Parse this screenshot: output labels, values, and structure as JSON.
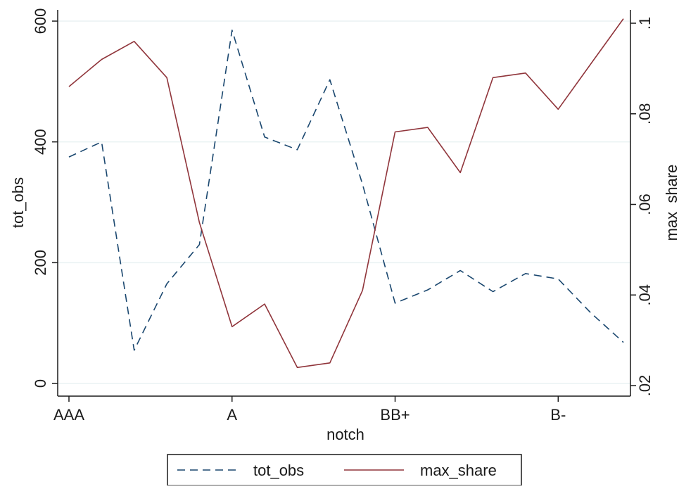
{
  "chart_data": {
    "type": "line",
    "xlabel": "notch",
    "x_ticks": [
      "AAA",
      "A",
      "BB+",
      "B-"
    ],
    "x_tick_positions": [
      1,
      6,
      11,
      16
    ],
    "x": [
      1,
      2,
      3,
      4,
      5,
      6,
      7,
      8,
      9,
      10,
      11,
      12,
      13,
      14,
      15,
      16,
      17,
      18
    ],
    "y_left": {
      "label": "tot_obs",
      "ticks": [
        "0",
        "200",
        "400",
        "600"
      ],
      "tick_values": [
        0,
        200,
        400,
        600
      ],
      "range": [
        0,
        600
      ]
    },
    "y_right": {
      "label": "max_share",
      "ticks": [
        ".02",
        ".04",
        ".06",
        ".08",
        ".1"
      ],
      "tick_values": [
        0.02,
        0.04,
        0.06,
        0.08,
        0.1
      ],
      "range": [
        0.02,
        0.1
      ]
    },
    "series": [
      {
        "name": "tot_obs",
        "axis": "left",
        "style": "dashed",
        "color": "#1a476f",
        "values": [
          375,
          400,
          55,
          165,
          230,
          585,
          408,
          387,
          503,
          330,
          133,
          155,
          187,
          152,
          182,
          173,
          117,
          68
        ]
      },
      {
        "name": "max_share",
        "axis": "right",
        "style": "solid",
        "color": "#90353b",
        "values": [
          0.086,
          0.092,
          0.096,
          0.088,
          0.056,
          0.033,
          0.038,
          0.024,
          0.025,
          0.041,
          0.076,
          0.077,
          0.067,
          0.088,
          0.089,
          0.081,
          0.091,
          0.101
        ]
      }
    ],
    "grid": "horizontal",
    "legend_position": "bottom"
  }
}
